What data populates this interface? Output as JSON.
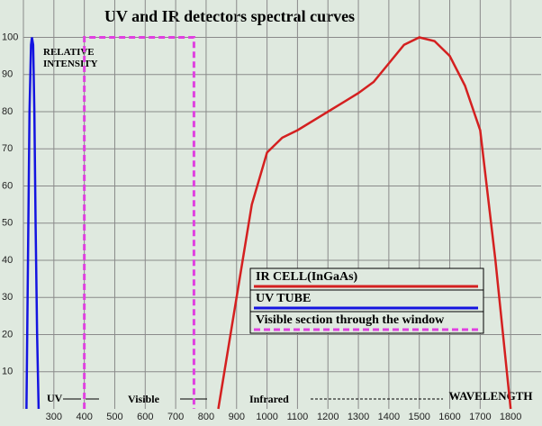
{
  "chart_data": {
    "type": "line",
    "title": "UV and IR detectors spectral curves",
    "y_label": "RELATIVE INTENSITY",
    "x_label": "WAVELENGTH",
    "annotations": [
      "UV",
      "Visible",
      "Infrared"
    ],
    "xlim": [
      200,
      1900
    ],
    "xticks": [
      300,
      400,
      500,
      600,
      700,
      800,
      900,
      1000,
      1100,
      1200,
      1300,
      1400,
      1500,
      1600,
      1700,
      1800
    ],
    "ylim": [
      0,
      100
    ],
    "yticks": [
      10,
      20,
      30,
      40,
      50,
      60,
      70,
      80,
      90,
      100
    ],
    "grid": true,
    "series": [
      {
        "name": "IR CELL(InGaAs)",
        "color": "#d42020",
        "dashed": false,
        "x": [
          840,
          900,
          950,
          1000,
          1050,
          1100,
          1200,
          1300,
          1350,
          1400,
          1450,
          1500,
          1550,
          1600,
          1650,
          1700,
          1750,
          1800
        ],
        "values": [
          0,
          30,
          55,
          69,
          73,
          75,
          80,
          85,
          88,
          93,
          98,
          100,
          99,
          95,
          87,
          75,
          40,
          0
        ]
      },
      {
        "name": "UV TUBE",
        "color": "#1414e0",
        "dashed": false,
        "x": [
          210,
          215,
          220,
          225,
          228,
          232,
          236,
          240,
          245,
          250
        ],
        "values": [
          0,
          40,
          80,
          98,
          100,
          98,
          80,
          50,
          20,
          0
        ]
      },
      {
        "name": "Visible section through the window",
        "color": "#e040e0",
        "dashed": true,
        "x": [
          400,
          400,
          760,
          760
        ],
        "values": [
          0,
          100,
          100,
          0
        ]
      }
    ]
  }
}
